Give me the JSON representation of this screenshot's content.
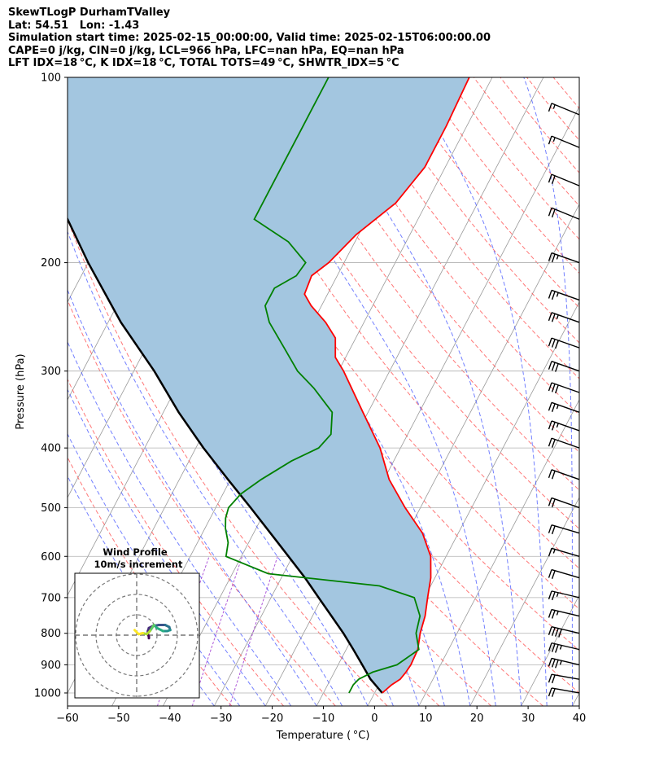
{
  "header": {
    "line1": "SkewTLogP DurhamTValley",
    "line2": "Lat: 54.51   Lon: -1.43",
    "line3": "Simulation start time: 2025-02-15_00:00:00, Valid time: 2025-02-15T06:00:00.00",
    "line4": "CAPE=0 j/kg, CIN=0 j/kg, LCL=966 hPa, LFC=nan hPa, EQ=nan hPa",
    "line5": "LFT IDX=18 °C, K IDX=18 °C, TOTAL TOTS=49 °C, SHWTR_IDX=5 °C"
  },
  "colors": {
    "temperature": "#ff0000",
    "dewpoint": "#008000",
    "parcel": "#000000",
    "shade": "#a3c6e0",
    "dry_adiabat": "#ff5555",
    "moist_adiabat": "#4455ff",
    "mixing_ratio": "#9b30d0",
    "isotherm": "#999999"
  },
  "chart_data": [
    {
      "type": "line",
      "subtype": "skew-T log-P diagram",
      "xlabel": "Temperature ( °C)",
      "ylabel": "Pressure (hPa)",
      "xlim": [
        -60,
        40
      ],
      "ylim": [
        1050,
        100
      ],
      "y_scale": "log",
      "x_ticks": [
        "−60",
        "−50",
        "−40",
        "−30",
        "−20",
        "−10",
        "0",
        "10",
        "20",
        "30",
        "40"
      ],
      "x_tick_values": [
        -60,
        -50,
        -40,
        -30,
        -20,
        -10,
        0,
        10,
        20,
        30,
        40
      ],
      "y_ticks": [
        "1000",
        "900",
        "800",
        "700",
        "600",
        "500",
        "400",
        "300",
        "200",
        "100"
      ],
      "y_tick_values": [
        1000,
        900,
        800,
        700,
        600,
        500,
        400,
        300,
        200,
        100
      ],
      "grid": true,
      "skew_per_decade": 63,
      "series": [
        {
          "name": "",
          "role": "temperature",
          "pressure": [
            1000,
            970,
            950,
            925,
            900,
            850,
            800,
            750,
            700,
            650,
            600,
            550,
            500,
            450,
            400,
            350,
            300,
            285,
            265,
            250,
            235,
            225,
            210,
            200,
            180,
            160,
            140,
            120,
            100
          ],
          "temp": [
            1.5,
            2.5,
            3.6,
            4.0,
            4.2,
            4.0,
            2.8,
            2.0,
            0.6,
            -0.8,
            -3.0,
            -7.0,
            -13.0,
            -19.0,
            -24.0,
            -31.0,
            -39.0,
            -42.0,
            -44.0,
            -47.5,
            -52.0,
            -54.5,
            -55.0,
            -53.0,
            -50.5,
            -46.0,
            -44.0,
            -44.0,
            -44.5
          ]
        },
        {
          "name": "",
          "role": "dewpoint",
          "pressure": [
            1000,
            970,
            950,
            925,
            900,
            850,
            800,
            750,
            700,
            670,
            640,
            600,
            570,
            540,
            520,
            500,
            475,
            450,
            420,
            400,
            380,
            350,
            320,
            300,
            275,
            250,
            235,
            220,
            210,
            200,
            185,
            170,
            150,
            120,
            100
          ],
          "temp": [
            -5.0,
            -5.0,
            -4.5,
            -2.5,
            1.5,
            4.2,
            2.0,
            1.0,
            -2.0,
            -10.0,
            -33.0,
            -43.0,
            -44.0,
            -46.0,
            -47.0,
            -47.5,
            -46.5,
            -44.0,
            -40.0,
            -36.0,
            -35.0,
            -37.0,
            -43.0,
            -48.0,
            -53.0,
            -58.5,
            -61.0,
            -61.0,
            -58.0,
            -57.5,
            -63.0,
            -72.0,
            -72.0,
            -72.0,
            -72.0
          ]
        },
        {
          "name": "",
          "role": "parcel",
          "pressure": [
            1000,
            966,
            950,
            900,
            850,
            800,
            750,
            700,
            650,
            600,
            550,
            500,
            450,
            400,
            350,
            300,
            250,
            200,
            150,
            100
          ],
          "temp": [
            1.5,
            -1.0,
            -2.2,
            -5.3,
            -8.6,
            -12.2,
            -16.3,
            -20.7,
            -25.4,
            -30.8,
            -36.7,
            -43.2,
            -50.5,
            -58.5,
            -67.0,
            -76.0,
            -87.5,
            -100.0,
            -115.0,
            -133.0
          ]
        }
      ]
    },
    {
      "type": "line",
      "subtype": "hodograph",
      "title": "Wind Profile",
      "subtitle": "10m/s increment",
      "rings_ms": [
        10,
        20,
        30
      ],
      "u": [
        6.0,
        6.0,
        5.5,
        5.5,
        6.0,
        8.0,
        11.0,
        14.0,
        16.0,
        16.5,
        15.0,
        13.0,
        10.0,
        8.5,
        7.5,
        6.5,
        5.0,
        3.0,
        1.0,
        -1.0
      ],
      "v": [
        -1.5,
        -0.8,
        0.5,
        2.0,
        3.5,
        4.5,
        5.0,
        5.0,
        4.0,
        2.5,
        2.0,
        2.0,
        3.5,
        5.0,
        3.5,
        2.0,
        0.5,
        1.0,
        0.5,
        2.5
      ]
    },
    {
      "type": "scatter",
      "subtype": "wind barbs",
      "pressure": [
        1000,
        950,
        900,
        850,
        800,
        750,
        700,
        650,
        600,
        550,
        500,
        450,
        400,
        375,
        350,
        325,
        300,
        275,
        250,
        230,
        200,
        170,
        150,
        130,
        115
      ],
      "speed_kt": [
        20,
        20,
        35,
        35,
        40,
        25,
        25,
        20,
        15,
        20,
        20,
        20,
        20,
        25,
        25,
        30,
        30,
        30,
        25,
        25,
        25,
        20,
        20,
        15,
        15
      ],
      "direction_deg": [
        300,
        300,
        290,
        290,
        290,
        290,
        290,
        280,
        280,
        280,
        270,
        270,
        270,
        270,
        270,
        270,
        270,
        270,
        270,
        270,
        270,
        260,
        260,
        260,
        260
      ]
    }
  ]
}
